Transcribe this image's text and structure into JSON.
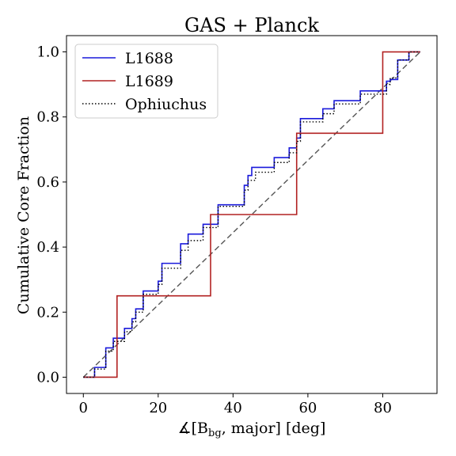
{
  "chart_data": {
    "type": "line",
    "title": "GAS + Planck",
    "xlabel": "∡[B",
    "xlabel_sub": "bg",
    "xlabel_rest": ", major] [deg]",
    "ylabel": "Cumulative Core Fraction",
    "xlim": [
      -4.5,
      94.5
    ],
    "ylim": [
      -0.05,
      1.05
    ],
    "xticks": [
      0,
      20,
      40,
      60,
      80
    ],
    "yticks": [
      0.0,
      0.2,
      0.4,
      0.6,
      0.8,
      1.0
    ],
    "xtick_labels": [
      "0",
      "20",
      "40",
      "60",
      "80"
    ],
    "ytick_labels": [
      "0.0",
      "0.2",
      "0.4",
      "0.6",
      "0.8",
      "1.0"
    ],
    "grid": false,
    "legend_position": "top-left",
    "series": [
      {
        "name": "L1688",
        "color": "#1a1adb",
        "style": "solid",
        "steps": [
          [
            0,
            0.0
          ],
          [
            3,
            0.03
          ],
          [
            6,
            0.09
          ],
          [
            8,
            0.12
          ],
          [
            11,
            0.15
          ],
          [
            13,
            0.18
          ],
          [
            14,
            0.21
          ],
          [
            16,
            0.265
          ],
          [
            20,
            0.295
          ],
          [
            21,
            0.35
          ],
          [
            26,
            0.41
          ],
          [
            28,
            0.44
          ],
          [
            32,
            0.47
          ],
          [
            36,
            0.53
          ],
          [
            43,
            0.59
          ],
          [
            44,
            0.62
          ],
          [
            45,
            0.645
          ],
          [
            51,
            0.675
          ],
          [
            55,
            0.705
          ],
          [
            57,
            0.735
          ],
          [
            58,
            0.795
          ],
          [
            64,
            0.825
          ],
          [
            67,
            0.85
          ],
          [
            74,
            0.88
          ],
          [
            81,
            0.91
          ],
          [
            82,
            0.915
          ],
          [
            84,
            0.975
          ],
          [
            87,
            1.0
          ],
          [
            90,
            1.0
          ]
        ]
      },
      {
        "name": "L1689",
        "color": "#b22222",
        "style": "solid",
        "steps": [
          [
            0,
            0.0
          ],
          [
            9,
            0.25
          ],
          [
            34,
            0.5
          ],
          [
            57,
            0.75
          ],
          [
            80,
            1.0
          ],
          [
            90,
            1.0
          ]
        ]
      },
      {
        "name": "Ophiuchus",
        "color": "#000000",
        "style": "dotted",
        "steps": [
          [
            0,
            0.0
          ],
          [
            3,
            0.025
          ],
          [
            6,
            0.08
          ],
          [
            8,
            0.11
          ],
          [
            11,
            0.14
          ],
          [
            13,
            0.17
          ],
          [
            14,
            0.2
          ],
          [
            16,
            0.255
          ],
          [
            20,
            0.285
          ],
          [
            21,
            0.335
          ],
          [
            26,
            0.39
          ],
          [
            28,
            0.42
          ],
          [
            32,
            0.46
          ],
          [
            36,
            0.525
          ],
          [
            43,
            0.575
          ],
          [
            44,
            0.605
          ],
          [
            46,
            0.63
          ],
          [
            51,
            0.66
          ],
          [
            55,
            0.69
          ],
          [
            57,
            0.725
          ],
          [
            58,
            0.785
          ],
          [
            64,
            0.81
          ],
          [
            67,
            0.84
          ],
          [
            74,
            0.87
          ],
          [
            81,
            0.9
          ],
          [
            82,
            0.92
          ],
          [
            84,
            0.975
          ],
          [
            87,
            1.0
          ],
          [
            90,
            1.0
          ]
        ]
      }
    ],
    "reference_line": {
      "from": [
        0,
        0
      ],
      "to": [
        90,
        1
      ],
      "color": "#555555",
      "style": "dashed"
    }
  }
}
